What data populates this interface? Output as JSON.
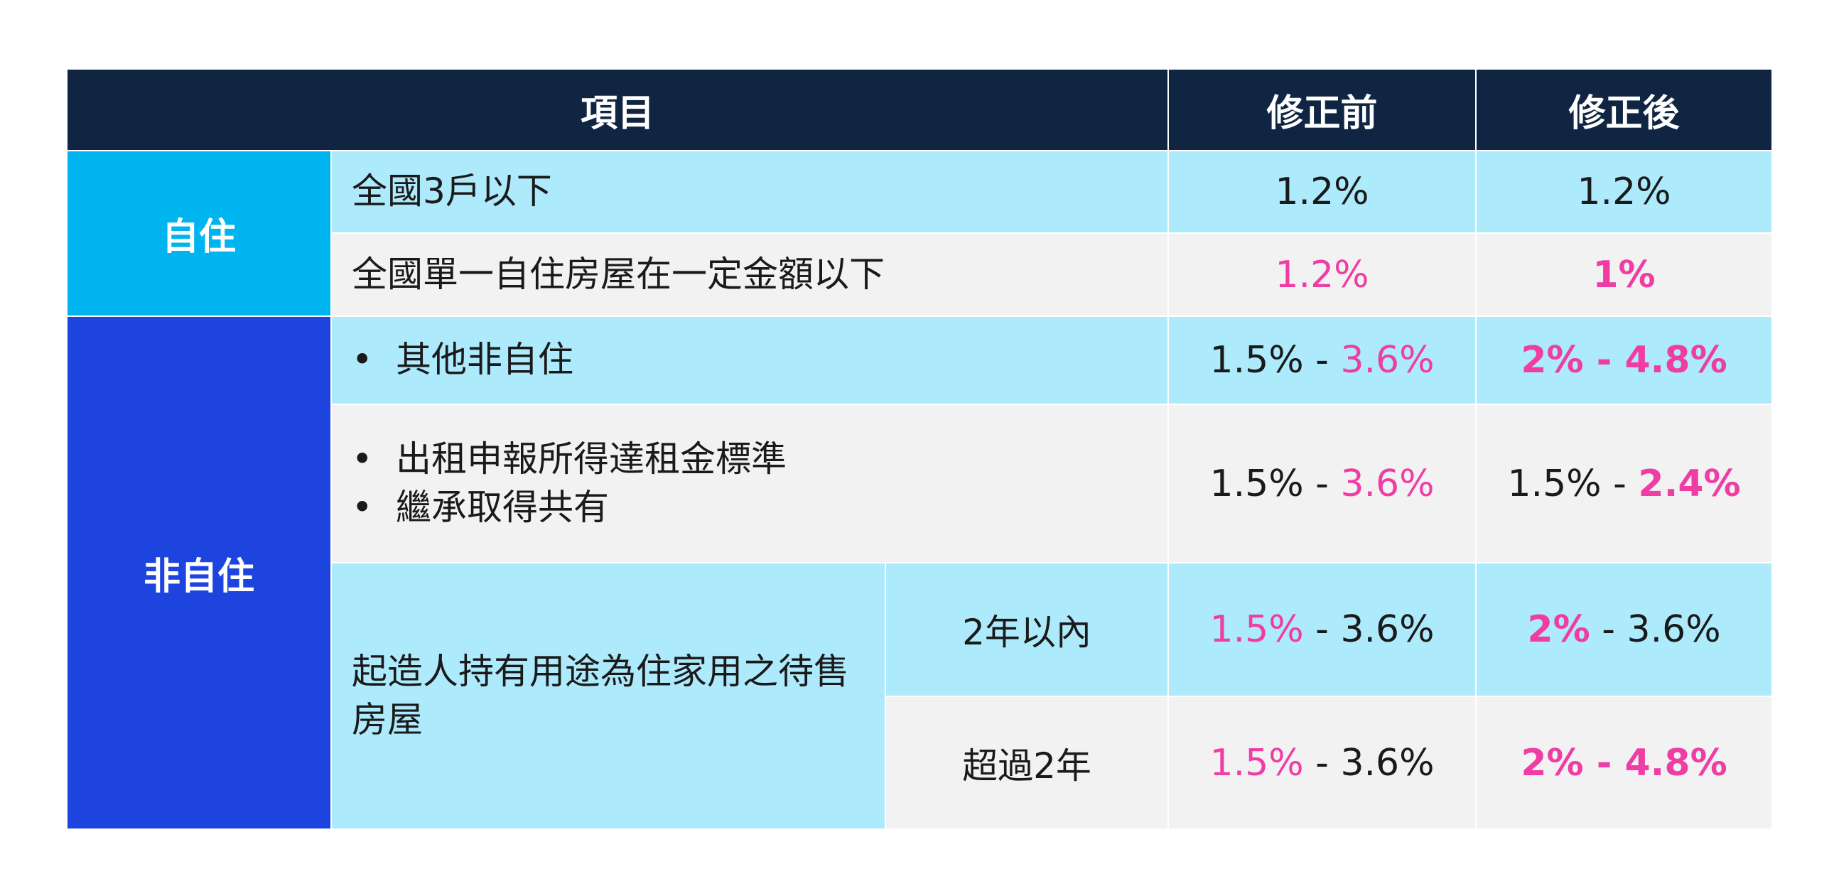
{
  "header": {
    "item": "項目",
    "before": "修正前",
    "after": "修正後"
  },
  "categories": {
    "self_use": "自住",
    "non_self_use": "非自住"
  },
  "rows": {
    "r1": {
      "item": "全國3戶以下",
      "before": "1.2%",
      "after": "1.2%"
    },
    "r2": {
      "item": "全國單一自住房屋在一定金額以下",
      "before": "1.2%",
      "after": "1%"
    },
    "r3": {
      "item": "其他非自住",
      "before_low": "1.5%",
      "sep": " - ",
      "before_high": "3.6%",
      "after_low": "2%",
      "after_high": "4.8%"
    },
    "r4": {
      "item1": "出租申報所得達租金標準",
      "item2": "繼承取得共有",
      "before_low": "1.5%",
      "sep": " - ",
      "before_high": "3.6%",
      "after_low": "1.5%",
      "after_high": "2.4%"
    },
    "r5": {
      "item": "起造人持有用途為住家用之待售房屋",
      "sub": "2年以內",
      "before_low": "1.5%",
      "sep": " - ",
      "before_high": "3.6%",
      "after_low": "2%",
      "after_high": "3.6%"
    },
    "r6": {
      "sub": "超過2年",
      "before_low": "1.5%",
      "sep": " - ",
      "before_high": "3.6%",
      "after_low": "2%",
      "after_high": "4.8%"
    }
  },
  "bullet_symbol": "•",
  "colors": {
    "header": "#0f2541",
    "self_use": "#00b5ef",
    "non_self_use": "#1e44e0",
    "light_row": "#adeafb",
    "gray_row": "#f2f2f2",
    "highlight": "#ef3da4"
  }
}
